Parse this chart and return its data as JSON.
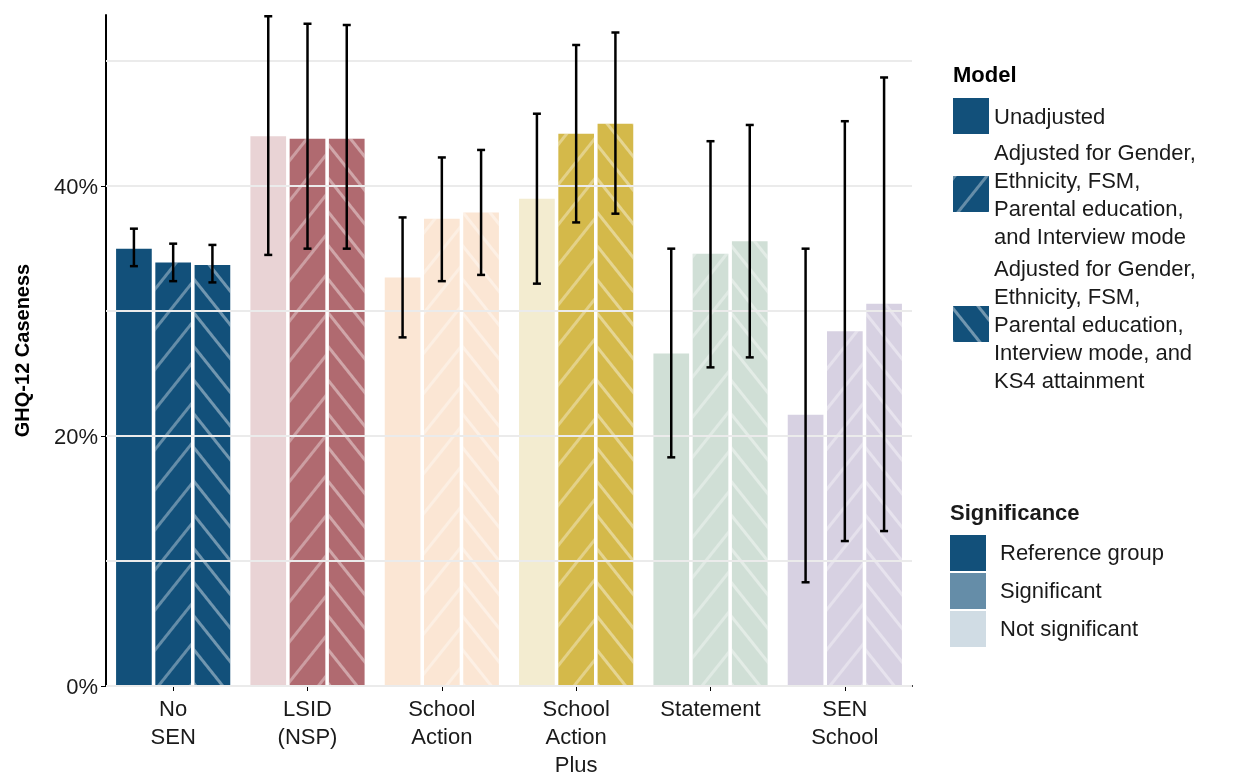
{
  "chart_data": {
    "type": "bar",
    "ylabel": "GHQ-12 Caseness",
    "legend_title": "Model",
    "legend": "right",
    "categories": [
      "No\nSEN",
      "LSID\n(NSP)",
      "School\nAction",
      "School\nAction\nPlus",
      "Statement",
      "SEN\nSchool"
    ],
    "series": [
      {
        "name": "Unadjusted",
        "color": "#12507a",
        "colors": [
          "#12507a",
          "#e9d3d5",
          "#fbe6d4",
          "#f3ecd0",
          "#d0dfd6",
          "#d7d1e2"
        ],
        "values": [
          35.0,
          44.0,
          32.7,
          39.0,
          26.6,
          21.7
        ],
        "errors": [
          [
            33.6,
            36.6
          ],
          [
            34.5,
            53.6
          ],
          [
            27.9,
            37.5
          ],
          [
            32.2,
            45.8
          ],
          [
            18.3,
            35.0
          ],
          [
            8.3,
            35.0
          ]
        ]
      },
      {
        "name": "Adjusted for Gender, Ethnicity, FSM, Parental education, and Interview mode",
        "color": "#12507a",
        "colors": [
          "#12507a",
          "#b06a70",
          "#fbe6d4",
          "#d4b94a",
          "#d0dfd6",
          "#d7d1e2"
        ],
        "values": [
          33.9,
          43.8,
          37.4,
          44.2,
          34.6,
          28.4
        ],
        "errors": [
          [
            32.4,
            35.4
          ],
          [
            35.0,
            53.0
          ],
          [
            32.4,
            42.3
          ],
          [
            37.1,
            51.3
          ],
          [
            25.5,
            43.6
          ],
          [
            11.6,
            45.2
          ]
        ]
      },
      {
        "name": "Adjusted for Gender, Ethnicity, FSM, Parental education, Interview mode, and KS4 attainment",
        "color": "#12507a",
        "colors": [
          "#12507a",
          "#b06a70",
          "#fbe6d4",
          "#d4b94a",
          "#d0dfd6",
          "#d7d1e2"
        ],
        "values": [
          33.7,
          43.8,
          37.9,
          45.0,
          35.6,
          30.6
        ],
        "errors": [
          [
            32.3,
            35.3
          ],
          [
            35.0,
            52.9
          ],
          [
            32.9,
            42.9
          ],
          [
            37.8,
            52.3
          ],
          [
            26.3,
            44.9
          ],
          [
            12.4,
            48.7
          ]
        ]
      }
    ],
    "ylim": [
      0,
      53.7
    ],
    "yticks": [
      {
        "value": 0,
        "label": "0%"
      },
      {
        "value": 10,
        "label": null
      },
      {
        "value": 20,
        "label": "20%"
      },
      {
        "value": 30,
        "label": null
      },
      {
        "value": 40,
        "label": "40%"
      },
      {
        "value": 50,
        "label": null
      }
    ],
    "grid": "y",
    "annotations": [
      "Significance",
      "Reference group",
      "Significant",
      "Not significant"
    ]
  }
}
